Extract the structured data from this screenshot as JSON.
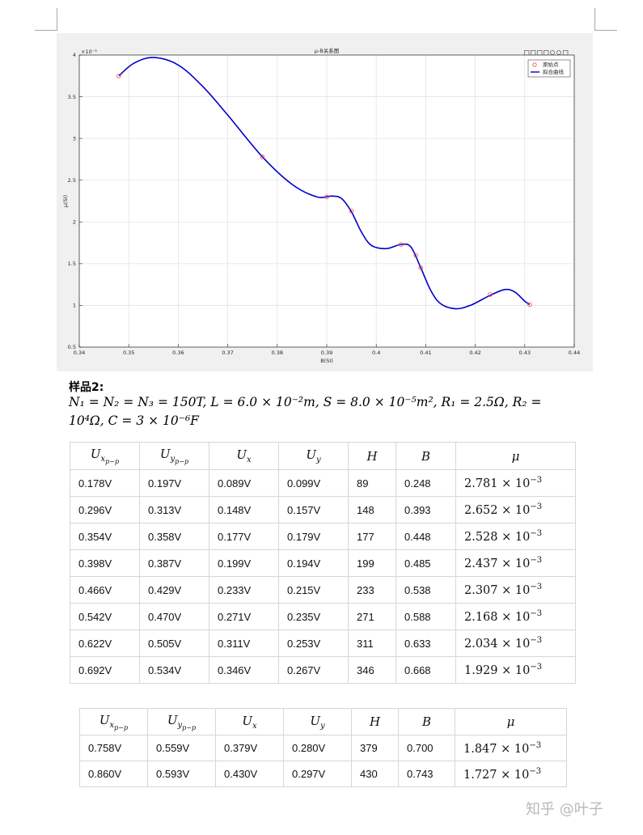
{
  "figure": {
    "title": "μ-B关系图",
    "xlabel": "B(SI)",
    "ylabel": "μ(SI)",
    "y_exponent": "×10⁻³",
    "legend": [
      "原始点",
      "拟合曲线"
    ],
    "colors": {
      "curve": "#0000cc",
      "points": "#ff4040"
    }
  },
  "chart_data": {
    "type": "scatter",
    "title": "μ-B关系图",
    "xlabel": "B(SI)",
    "ylabel": "μ(SI)",
    "xlim": [
      0.34,
      0.44
    ],
    "ylim": [
      0.5,
      4
    ],
    "y_scale_note": "×10⁻³",
    "grid": true,
    "legend_position": "top-right",
    "x_ticks": [
      "0.34",
      "0.35",
      "0.36",
      "0.37",
      "0.38",
      "0.39",
      "0.4",
      "0.41",
      "0.42",
      "0.43",
      "0.44"
    ],
    "y_ticks": [
      "0.5",
      "1",
      "1.5",
      "2",
      "2.5",
      "3",
      "3.5",
      "4"
    ],
    "series": [
      {
        "name": "原始点",
        "style": "markers",
        "x": [
          0.348,
          0.377,
          0.39,
          0.395,
          0.405,
          0.408,
          0.409,
          0.423,
          0.431
        ],
        "y": [
          3.75,
          2.78,
          2.3,
          2.13,
          1.73,
          1.6,
          1.45,
          1.13,
          1.01
        ]
      },
      {
        "name": "拟合曲线",
        "style": "line",
        "x": [
          0.348,
          0.351,
          0.355,
          0.36,
          0.365,
          0.37,
          0.377,
          0.383,
          0.388,
          0.391,
          0.393,
          0.395,
          0.397,
          0.399,
          0.402,
          0.405,
          0.407,
          0.409,
          0.411,
          0.413,
          0.416,
          0.419,
          0.423,
          0.426,
          0.428,
          0.43,
          0.431
        ],
        "y": [
          3.75,
          3.9,
          3.97,
          3.88,
          3.62,
          3.28,
          2.78,
          2.45,
          2.3,
          2.31,
          2.28,
          2.12,
          1.88,
          1.72,
          1.68,
          1.73,
          1.7,
          1.45,
          1.18,
          1.02,
          0.96,
          1.0,
          1.12,
          1.19,
          1.16,
          1.05,
          1.01
        ]
      }
    ]
  },
  "sample": {
    "title": "样品2:",
    "formula_line1": {
      "n": "N₁ = N₂ = N₃ = 150T,",
      "l": "L = 6.0 × 10⁻²m,",
      "s": "S = 8.0 × 10⁻⁵m²,",
      "r1": "R₁ = 2.5Ω,",
      "r2": "R₂ ="
    },
    "formula_line2": "10⁴Ω, C = 3 × 10⁻⁶F"
  },
  "table1": {
    "rows": [
      [
        "0.178V",
        "0.197V",
        "0.089V",
        "0.099V",
        "89",
        "0.248",
        "2.781",
        "−3"
      ],
      [
        "0.296V",
        "0.313V",
        "0.148V",
        "0.157V",
        "148",
        "0.393",
        "2.652",
        "−3"
      ],
      [
        "0.354V",
        "0.358V",
        "0.177V",
        "0.179V",
        "177",
        "0.448",
        "2.528",
        "−3"
      ],
      [
        "0.398V",
        "0.387V",
        "0.199V",
        "0.194V",
        "199",
        "0.485",
        "2.437",
        "−3"
      ],
      [
        "0.466V",
        "0.429V",
        "0.233V",
        "0.215V",
        "233",
        "0.538",
        "2.307",
        "−3"
      ],
      [
        "0.542V",
        "0.470V",
        "0.271V",
        "0.235V",
        "271",
        "0.588",
        "2.168",
        "−3"
      ],
      [
        "0.622V",
        "0.505V",
        "0.311V",
        "0.253V",
        "311",
        "0.633",
        "2.034",
        "−3"
      ],
      [
        "0.692V",
        "0.534V",
        "0.346V",
        "0.267V",
        "346",
        "0.668",
        "1.929",
        "−3"
      ]
    ]
  },
  "table2": {
    "rows": [
      [
        "0.758V",
        "0.559V",
        "0.379V",
        "0.280V",
        "379",
        "0.700",
        "1.847",
        "−3"
      ],
      [
        "0.860V",
        "0.593V",
        "0.430V",
        "0.297V",
        "430",
        "0.743",
        "1.727",
        "−3"
      ]
    ]
  },
  "headers": {
    "ux": "U",
    "ux_sub": "x",
    "ux_subsub": "p−p",
    "uy": "U",
    "uy_sub": "y",
    "uy_subsub": "p−p",
    "ux2": "U",
    "ux2_sub": "x",
    "uy2": "U",
    "uy2_sub": "y",
    "h": "H",
    "b": "B",
    "mu": "μ",
    "times10": "× 10"
  },
  "watermark": "知乎 @叶子"
}
